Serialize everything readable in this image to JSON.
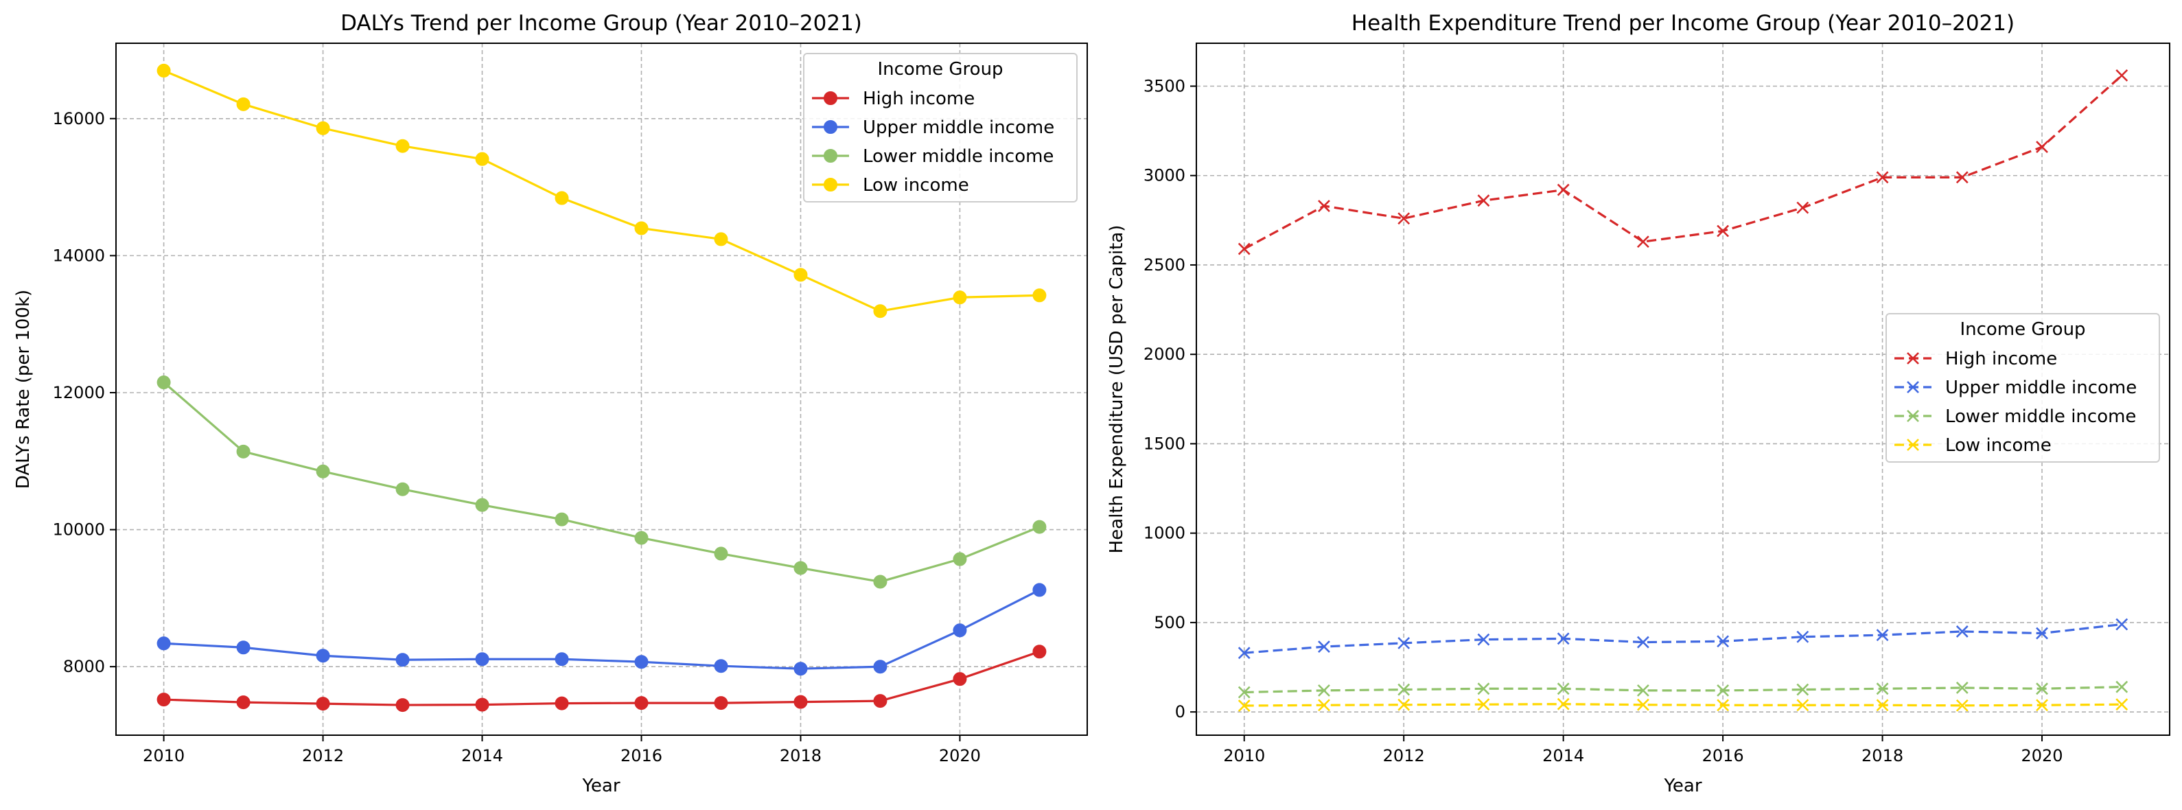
{
  "chart_data": [
    {
      "type": "line",
      "title": "DALYs Trend per Income Group (Year 2010–2021)",
      "xlabel": "Year",
      "ylabel": "DALYs Rate (per 100k)",
      "xlim": [
        2009.4,
        2021.6
      ],
      "ylim": [
        7000,
        17100
      ],
      "xticks": [
        2010,
        2012,
        2014,
        2016,
        2018,
        2020
      ],
      "yticks": [
        8000,
        10000,
        12000,
        14000,
        16000
      ],
      "marker": "circle",
      "line_style": "solid",
      "grid": true,
      "legend": {
        "title": "Income Group",
        "position": "top-right"
      },
      "x": [
        2010,
        2011,
        2012,
        2013,
        2014,
        2015,
        2016,
        2017,
        2018,
        2019,
        2020,
        2021
      ],
      "series": [
        {
          "name": "High income",
          "color": "#d62728",
          "values": [
            7520,
            7480,
            7460,
            7440,
            7445,
            7465,
            7470,
            7470,
            7485,
            7500,
            7820,
            8220
          ]
        },
        {
          "name": "Upper middle income",
          "color": "#4169e1",
          "values": [
            8340,
            8280,
            8160,
            8100,
            8110,
            8110,
            8070,
            8010,
            7970,
            8000,
            8530,
            9120
          ]
        },
        {
          "name": "Lower middle income",
          "color": "#90c26a",
          "values": [
            12150,
            11140,
            10850,
            10590,
            10360,
            10150,
            9880,
            9650,
            9440,
            9240,
            9570,
            10040
          ]
        },
        {
          "name": "Low income",
          "color": "#ffd700",
          "values": [
            16700,
            16210,
            15860,
            15600,
            15410,
            14840,
            14400,
            14240,
            13720,
            13190,
            13390,
            13420
          ]
        }
      ]
    },
    {
      "type": "line",
      "title": "Health Expenditure Trend per Income Group (Year 2010–2021)",
      "xlabel": "Year",
      "ylabel": "Health Expenditure (USD per Capita)",
      "xlim": [
        2009.4,
        2021.6
      ],
      "ylim": [
        -130,
        3740
      ],
      "xticks": [
        2010,
        2012,
        2014,
        2016,
        2018,
        2020
      ],
      "yticks": [
        0,
        500,
        1000,
        1500,
        2000,
        2500,
        3000,
        3500
      ],
      "marker": "x",
      "line_style": "dashed",
      "grid": true,
      "legend": {
        "title": "Income Group",
        "position": "center-right"
      },
      "x": [
        2010,
        2011,
        2012,
        2013,
        2014,
        2015,
        2016,
        2017,
        2018,
        2019,
        2020,
        2021
      ],
      "series": [
        {
          "name": "High income",
          "color": "#d62728",
          "values": [
            2590,
            2830,
            2760,
            2860,
            2920,
            2630,
            2690,
            2820,
            2990,
            2990,
            3160,
            3560
          ]
        },
        {
          "name": "Upper middle income",
          "color": "#4169e1",
          "values": [
            330,
            365,
            385,
            405,
            410,
            390,
            395,
            420,
            430,
            450,
            440,
            490
          ]
        },
        {
          "name": "Lower middle income",
          "color": "#90c26a",
          "values": [
            110,
            120,
            125,
            130,
            130,
            120,
            120,
            125,
            130,
            135,
            130,
            140
          ]
        },
        {
          "name": "Low income",
          "color": "#ffd700",
          "values": [
            35,
            38,
            40,
            42,
            44,
            40,
            38,
            38,
            38,
            36,
            38,
            42
          ]
        }
      ]
    }
  ]
}
